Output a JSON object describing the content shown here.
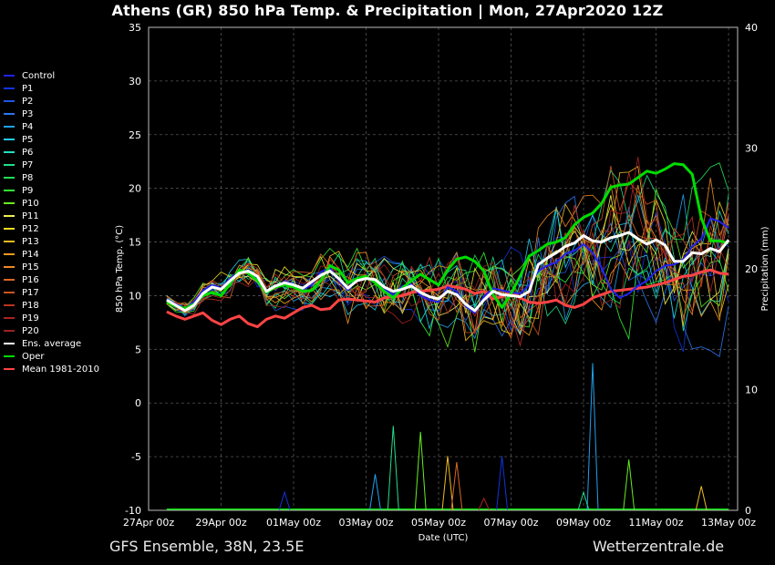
{
  "title": "Athens  (GR)  850 hPa Temp. & Precipitation | Mon, 27Apr2020 12Z",
  "footer": {
    "left": "GFS Ensemble, 38N, 23.5E",
    "right": "Wetterzentrale.de"
  },
  "colors": {
    "background": "#000000",
    "grid": "#555555",
    "ens_average": "#ffffff",
    "oper": "#00dd00",
    "mean": "#ff4444"
  },
  "legend": [
    {
      "label": "Control",
      "color": "#2222ee"
    },
    {
      "label": "P1",
      "color": "#1133dd"
    },
    {
      "label": "P2",
      "color": "#1f55e0"
    },
    {
      "label": "P3",
      "color": "#2a77ee"
    },
    {
      "label": "P4",
      "color": "#22a0ee"
    },
    {
      "label": "P5",
      "color": "#22ccee"
    },
    {
      "label": "P6",
      "color": "#22e0c0"
    },
    {
      "label": "P7",
      "color": "#22dd88"
    },
    {
      "label": "P8",
      "color": "#22dd55"
    },
    {
      "label": "P9",
      "color": "#33ee33"
    },
    {
      "label": "P10",
      "color": "#66ee22"
    },
    {
      "label": "P11",
      "color": "#eeee55"
    },
    {
      "label": "P12",
      "color": "#eedd22"
    },
    {
      "label": "P13",
      "color": "#eebb22"
    },
    {
      "label": "P14",
      "color": "#ee9922"
    },
    {
      "label": "P15",
      "color": "#ee8822"
    },
    {
      "label": "P16",
      "color": "#dd6622"
    },
    {
      "label": "P17",
      "color": "#cc5522"
    },
    {
      "label": "P18",
      "color": "#bb3322"
    },
    {
      "label": "P19",
      "color": "#aa2222"
    },
    {
      "label": "P20",
      "color": "#992222"
    },
    {
      "label": "Ens. average",
      "color": "#ffffff"
    },
    {
      "label": "Oper",
      "color": "#00dd00"
    },
    {
      "label": "Mean 1981-2010",
      "color": "#ff4444"
    }
  ],
  "chart_data": {
    "type": "line",
    "title": "Athens  (GR)  850 hPa Temp. & Precipitation | Mon, 27Apr2020 12Z",
    "xlabel": "Date (UTC)",
    "ylabel": "850 hPa Temp. (°C)",
    "ylabel_right": "Precipitation (mm)",
    "ylim": [
      -10,
      35
    ],
    "ylim_right": [
      0,
      40
    ],
    "yticks": [
      "35",
      "30",
      "25",
      "20",
      "15",
      "10",
      "5",
      "0",
      "-5",
      "-10"
    ],
    "yticks_right": [
      "40",
      "30",
      "20",
      "10",
      "0"
    ],
    "xticks": [
      "27Apr 00z",
      "29Apr 00z",
      "01May 00z",
      "03May 00z",
      "05May 00z",
      "07May 00z",
      "09May 00z",
      "11May 00z",
      "13May 00z"
    ],
    "x_hours_from_27Apr00z": [
      12,
      18,
      24,
      30,
      36,
      42,
      48,
      54,
      60,
      66,
      72,
      78,
      84,
      90,
      96,
      102,
      108,
      114,
      120,
      126,
      132,
      138,
      144,
      150,
      156,
      162,
      168,
      174,
      180,
      186,
      192,
      198,
      204,
      210,
      216,
      222,
      228,
      234,
      240,
      246,
      252,
      258,
      264,
      270,
      276,
      282,
      288,
      294,
      300,
      306,
      312,
      318,
      324,
      330,
      336,
      342,
      348,
      354,
      360,
      366,
      372,
      378,
      384
    ],
    "grid": true,
    "legend_position": "left",
    "series": [
      {
        "name": "Ens. average",
        "type": "temperature",
        "values": [
          9.6,
          9.1,
          8.6,
          9.1,
          10.2,
          10.8,
          10.6,
          11.4,
          12.1,
          12.3,
          11.8,
          10.4,
          10.9,
          11.2,
          11.0,
          10.7,
          11.3,
          11.9,
          12.3,
          11.6,
          10.7,
          11.4,
          11.6,
          11.5,
          10.8,
          10.4,
          10.6,
          10.9,
          10.3,
          9.9,
          9.7,
          10.4,
          10.1,
          9.2,
          8.6,
          9.6,
          10.4,
          10.1,
          10.0,
          9.9,
          10.4,
          12.9,
          13.5,
          14.0,
          14.6,
          14.9,
          15.6,
          15.1,
          15.0,
          15.4,
          15.6,
          15.9,
          15.3,
          14.8,
          15.2,
          14.7,
          13.2,
          13.2,
          14.0,
          13.9,
          14.4,
          14.1,
          15.2
        ]
      },
      {
        "name": "Oper",
        "type": "temperature",
        "values": [
          9.4,
          9.0,
          8.8,
          9.2,
          10.0,
          10.3,
          10.0,
          11.1,
          12.4,
          12.1,
          11.4,
          10.3,
          10.8,
          11.0,
          10.8,
          10.4,
          10.5,
          11.4,
          12.8,
          12.4,
          11.2,
          11.6,
          11.8,
          11.2,
          10.4,
          9.8,
          10.7,
          11.4,
          12.0,
          11.5,
          11.0,
          12.4,
          13.4,
          13.6,
          13.2,
          12.3,
          10.1,
          8.9,
          10.2,
          11.8,
          13.7,
          14.2,
          14.8,
          15.0,
          15.4,
          16.6,
          17.3,
          17.7,
          18.6,
          20.1,
          20.3,
          20.4,
          21.0,
          21.6,
          21.4,
          21.8,
          22.3,
          22.2,
          21.3,
          17.2,
          15.1,
          15.1,
          14.9
        ]
      },
      {
        "name": "Mean 1981-2010",
        "type": "temperature",
        "values": [
          8.5,
          8.1,
          7.8,
          8.1,
          8.4,
          7.7,
          7.3,
          7.8,
          8.1,
          7.4,
          7.1,
          7.8,
          8.1,
          7.9,
          8.4,
          8.9,
          9.1,
          8.7,
          8.8,
          9.6,
          9.7,
          9.6,
          9.5,
          9.4,
          9.8,
          9.9,
          10.0,
          10.3,
          10.4,
          10.5,
          10.6,
          10.9,
          10.8,
          10.6,
          10.2,
          10.4,
          9.7,
          9.9,
          10.4,
          9.8,
          9.4,
          9.3,
          9.4,
          9.6,
          9.1,
          8.9,
          9.2,
          9.8,
          10.1,
          10.4,
          10.5,
          10.6,
          10.7,
          10.8,
          11.0,
          11.2,
          11.5,
          11.8,
          11.9,
          12.2,
          12.4,
          12.1,
          12.0
        ]
      },
      {
        "name": "Control",
        "type": "temperature",
        "values": [
          9.7,
          9.2,
          8.8,
          9.4,
          10.5,
          11.0,
          10.7,
          11.6,
          12.3,
          12.2,
          11.6,
          10.2,
          10.8,
          11.3,
          11.1,
          10.6,
          11.0,
          12.2,
          12.6,
          11.4,
          10.5,
          11.6,
          11.8,
          11.2,
          10.6,
          10.1,
          10.9,
          11.1,
          10.0,
          9.6,
          9.4,
          10.8,
          10.4,
          9.0,
          8.4,
          9.9,
          10.7,
          10.5,
          10.3,
          10.2,
          11.0,
          12.3,
          12.8,
          13.1,
          13.9,
          14.2,
          14.8,
          14.0,
          12.6,
          10.6,
          9.8,
          10.2,
          10.9,
          11.4,
          12.3,
          12.8,
          12.9,
          13.4,
          14.6,
          15.3,
          17.2,
          16.9,
          16.3
        ]
      }
    ],
    "members_note": "P1-P20 drawn as thin coloured lines",
    "precipitation_peaks_mm": [
      {
        "hour": 90,
        "value": 1.5
      },
      {
        "hour": 150,
        "value": 3.0
      },
      {
        "hour": 162,
        "value": 7.0
      },
      {
        "hour": 180,
        "value": 6.5
      },
      {
        "hour": 198,
        "value": 4.5
      },
      {
        "hour": 204,
        "value": 4.0
      },
      {
        "hour": 222,
        "value": 1.0
      },
      {
        "hour": 234,
        "value": 4.5
      },
      {
        "hour": 294,
        "value": 12.2
      },
      {
        "hour": 288,
        "value": 1.5
      },
      {
        "hour": 318,
        "value": 4.2
      },
      {
        "hour": 366,
        "value": 2.0
      }
    ]
  }
}
